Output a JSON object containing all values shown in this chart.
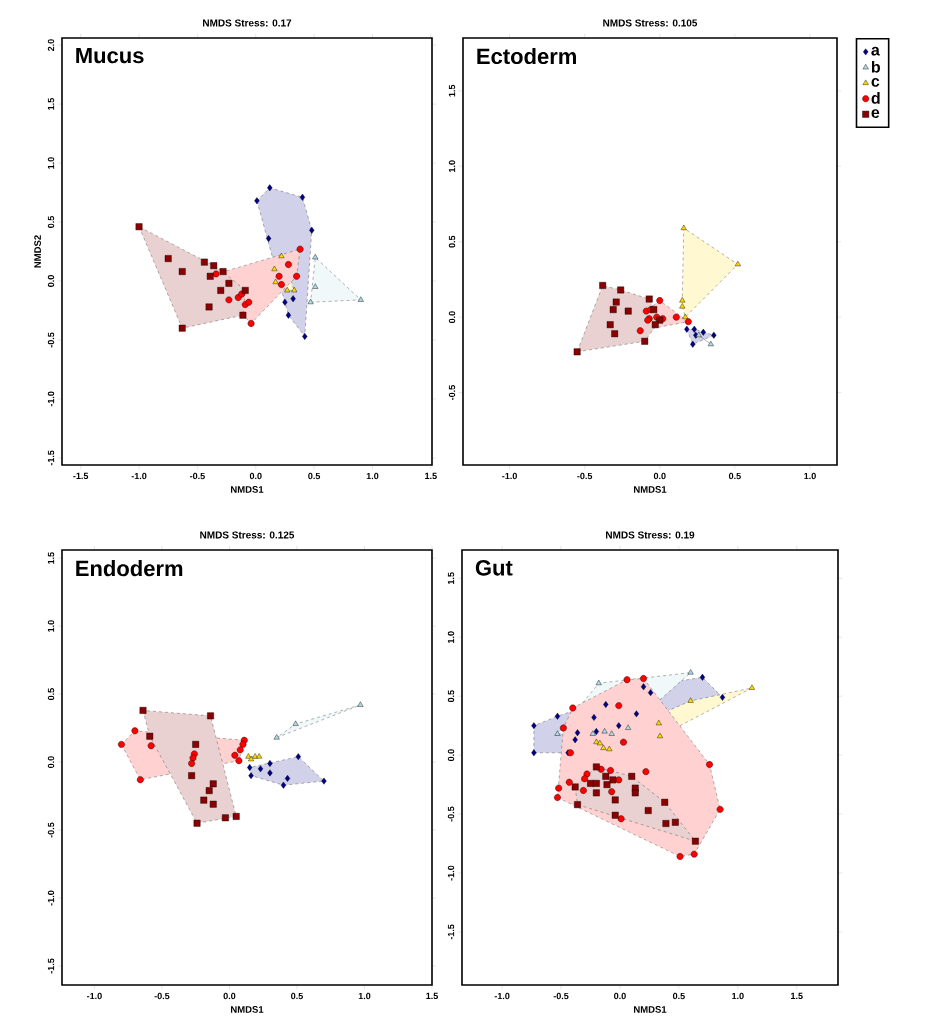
{
  "chart_data": [
    {
      "type": "scatter",
      "title": "NMDS Stress: 0.17",
      "annotations": [
        "Mucus"
      ],
      "xlabel": "NMDS1",
      "ylabel": "NMDS2",
      "xlim": [
        -1.66,
        1.51
      ],
      "ylim": [
        -1.56,
        2.06
      ],
      "xticks": [
        -1.5,
        {
          "value": -1,
          "label": "-1.0"
        },
        -0.5,
        {
          "value": 0,
          "label": "0.0"
        },
        0.5,
        {
          "value": 1,
          "label": "1.0"
        },
        1.5
      ],
      "yticks": [
        -1.5,
        {
          "value": -1,
          "label": "-1.0"
        },
        -0.5,
        {
          "value": 0,
          "label": "0.0"
        },
        0.5,
        {
          "value": 1,
          "label": "1.0"
        },
        1.5,
        {
          "value": 2,
          "label": "2.0"
        }
      ],
      "grid": false,
      "series": [
        {
          "color": "#00008b",
          "marker": "diamond",
          "x": [
            0.12,
            0.01,
            0.4,
            0.48,
            0.11,
            0.32,
            0.25,
            0.28,
            0.42
          ],
          "values": [
            0.79,
            0.68,
            0.71,
            0.43,
            0.36,
            -0.15,
            -0.18,
            -0.29,
            -0.47
          ]
        },
        {
          "color": "#add8e6",
          "marker": "triangle",
          "x": [
            0.51,
            0.51,
            0.47,
            0.9
          ],
          "values": [
            0.2,
            -0.05,
            -0.18,
            -0.16
          ]
        },
        {
          "color": "#ffd700",
          "marker": "triangle",
          "x": [
            0.22,
            0.16,
            0.17,
            0.27,
            0.33
          ],
          "values": [
            0.21,
            0.1,
            -0.01,
            -0.08,
            -0.08
          ]
        },
        {
          "color": "#ff0000",
          "marker": "circle",
          "x": [
            -0.34,
            -0.23,
            -0.15,
            -0.12,
            -0.09,
            -0.06,
            -0.04,
            0.38,
            0.28,
            0.2,
            0.22,
            0.35
          ],
          "values": [
            0.06,
            -0.16,
            -0.14,
            -0.11,
            -0.2,
            -0.18,
            -0.36,
            0.27,
            0.14,
            0.04,
            -0.03,
            0.04
          ]
        },
        {
          "color": "#8b0000",
          "marker": "square",
          "x": [
            -1.0,
            -0.75,
            -0.63,
            -0.63,
            -0.44,
            -0.36,
            -0.28,
            -0.39,
            -0.23,
            -0.3,
            -0.09,
            -0.4,
            -0.11
          ],
          "values": [
            0.46,
            0.19,
            0.08,
            -0.4,
            0.16,
            0.13,
            0.08,
            0.04,
            -0.02,
            -0.08,
            -0.08,
            -0.22,
            -0.29
          ]
        }
      ]
    },
    {
      "type": "scatter",
      "title": "NMDS Stress: 0.105",
      "annotations": [
        "Ectoderm"
      ],
      "xlabel": "NMDS1",
      "xlim": [
        -1.31,
        1.18
      ],
      "ylim": [
        -0.98,
        1.85
      ],
      "xticks": [
        {
          "value": -1,
          "label": "-1.0"
        },
        -0.5,
        {
          "value": 0,
          "label": "0.0"
        },
        0.5,
        {
          "value": 1,
          "label": "1.0"
        }
      ],
      "yticks": [
        -0.5,
        {
          "value": 0,
          "label": "0.0"
        },
        0.5,
        {
          "value": 1,
          "label": "1.0"
        },
        1.5
      ],
      "grid": false,
      "legend": "right",
      "series": [
        {
          "name": "a",
          "color": "#00008b",
          "marker": "diamond",
          "x": [
            0.18,
            0.23,
            0.29,
            0.36,
            0.22,
            0.24
          ],
          "values": [
            -0.08,
            -0.08,
            -0.1,
            -0.12,
            -0.18,
            -0.12
          ]
        },
        {
          "name": "b",
          "color": "#add8e6",
          "marker": "triangle",
          "x": [
            0.34,
            0.26
          ],
          "values": [
            -0.18,
            -0.12
          ]
        },
        {
          "name": "c",
          "color": "#ffd700",
          "marker": "triangle",
          "x": [
            0.16,
            0.52,
            0.15,
            0.15,
            0.17
          ],
          "values": [
            0.59,
            0.35,
            0.11,
            0.07,
            0.0
          ]
        },
        {
          "name": "d",
          "color": "#ff0000",
          "marker": "circle",
          "x": [
            0.0,
            -0.09,
            -0.07,
            -0.08,
            -0.02,
            0.02,
            -0.13,
            0.11,
            0.19,
            -0.06
          ],
          "values": [
            0.11,
            0.04,
            -0.01,
            -0.02,
            0.0,
            -0.01,
            -0.09,
            0.0,
            -0.03,
            0.05
          ]
        },
        {
          "name": "e",
          "color": "#8b0000",
          "marker": "square",
          "x": [
            -0.38,
            -0.26,
            -0.29,
            -0.31,
            -0.21,
            -0.33,
            -0.3,
            -0.1,
            -0.55,
            -0.07,
            -0.04,
            0.0,
            -0.03
          ],
          "values": [
            0.21,
            0.18,
            0.1,
            0.05,
            0.04,
            -0.05,
            -0.11,
            -0.16,
            -0.23,
            0.12,
            0.05,
            -0.02,
            -0.05
          ]
        }
      ]
    },
    {
      "type": "scatter",
      "title": "NMDS Stress: 0.125",
      "annotations": [
        "Endoderm"
      ],
      "xlabel": "NMDS1",
      "xlim": [
        -1.24,
        1.5
      ],
      "ylim": [
        -1.64,
        1.56
      ],
      "xticks": [
        {
          "value": -1,
          "label": "-1.0"
        },
        -0.5,
        {
          "value": 0,
          "label": "0.0"
        },
        0.5,
        {
          "value": 1,
          "label": "1.0"
        },
        1.5
      ],
      "yticks": [
        -1.5,
        {
          "value": -1,
          "label": "-1.0"
        },
        -0.5,
        {
          "value": 0,
          "label": "0.0"
        },
        0.5,
        {
          "value": 1,
          "label": "1.0"
        },
        1.5
      ],
      "grid": false,
      "series": [
        {
          "color": "#00008b",
          "marker": "diamond",
          "x": [
            0.15,
            0.23,
            0.16,
            0.3,
            0.3,
            0.51,
            0.43,
            0.4,
            0.7
          ],
          "values": [
            -0.04,
            -0.05,
            -0.1,
            -0.01,
            -0.08,
            0.04,
            -0.12,
            -0.17,
            -0.14
          ]
        },
        {
          "color": "#add8e6",
          "marker": "triangle",
          "x": [
            0.35,
            0.49,
            0.97
          ],
          "values": [
            0.18,
            0.28,
            0.42
          ]
        },
        {
          "color": "#ffd700",
          "marker": "triangle",
          "x": [
            0.14,
            0.19,
            0.22,
            0.16
          ],
          "values": [
            0.04,
            0.04,
            0.04,
            0.02
          ]
        },
        {
          "color": "#ff0000",
          "marker": "circle",
          "x": [
            -0.7,
            -0.8,
            -0.58,
            -0.66,
            -0.26,
            -0.27,
            -0.28,
            0.11,
            0.1,
            0.08,
            0.04,
            0.07
          ],
          "values": [
            0.23,
            0.13,
            0.12,
            -0.13,
            0.06,
            0.03,
            -0.01,
            0.16,
            0.13,
            0.09,
            0.05,
            0.01
          ]
        },
        {
          "color": "#8b0000",
          "marker": "square",
          "x": [
            -0.64,
            -0.14,
            -0.59,
            -0.25,
            -0.28,
            -0.12,
            -0.15,
            -0.19,
            -0.12,
            -0.24,
            -0.03,
            0.05
          ],
          "values": [
            0.38,
            0.34,
            0.19,
            0.13,
            -0.1,
            -0.16,
            -0.21,
            -0.28,
            -0.31,
            -0.45,
            -0.41,
            -0.4
          ]
        }
      ]
    },
    {
      "type": "scatter",
      "title": "NMDS Stress: 0.19",
      "annotations": [
        "Gut"
      ],
      "xlabel": "NMDS1",
      "xlim": [
        -1.34,
        1.85
      ],
      "ylim": [
        -1.95,
        1.74
      ],
      "xticks": [
        {
          "value": -1,
          "label": "-1.0"
        },
        -0.5,
        {
          "value": 0,
          "label": "0.0"
        },
        0.5,
        {
          "value": 1,
          "label": "1.0"
        },
        1.5
      ],
      "yticks": [
        -1.5,
        {
          "value": -1,
          "label": "-1.0"
        },
        -0.5,
        {
          "value": 0,
          "label": "0.0"
        },
        0.5,
        {
          "value": 1,
          "label": "1.0"
        },
        1.5
      ],
      "grid": false,
      "series": [
        {
          "color": "#00008b",
          "marker": "diamond",
          "x": [
            -0.73,
            -0.73,
            -0.53,
            -0.44,
            -0.36,
            -0.38,
            -0.22,
            -0.12,
            -0.01,
            0.14,
            0.2,
            0.26,
            0.7,
            0.87,
            -0.2
          ],
          "values": [
            0.25,
            0.02,
            0.33,
            0.02,
            0.19,
            0.13,
            0.32,
            0.43,
            0.25,
            0.35,
            0.58,
            0.53,
            0.66,
            0.49,
            0.2
          ]
        },
        {
          "color": "#add8e6",
          "marker": "triangle",
          "x": [
            -0.18,
            -0.53,
            -0.23,
            -0.13,
            -0.07,
            0.07,
            0.6
          ],
          "values": [
            0.61,
            0.18,
            0.18,
            0.2,
            0.18,
            0.23,
            0.7
          ]
        },
        {
          "color": "#ffd700",
          "marker": "triangle",
          "x": [
            -0.2,
            -0.17,
            -0.14,
            -0.09,
            0.33,
            0.34,
            0.6,
            1.12
          ],
          "values": [
            0.11,
            0.1,
            0.06,
            0.05,
            0.27,
            0.16,
            0.46,
            0.57
          ]
        },
        {
          "color": "#ff0000",
          "marker": "circle",
          "x": [
            0.06,
            0.2,
            -0.4,
            -0.48,
            -0.01,
            0.03,
            -0.42,
            -0.52,
            -0.53,
            -0.43,
            -0.31,
            -0.28,
            -0.3,
            -0.16,
            -0.08,
            -0.01,
            -0.07,
            0.22,
            0.76,
            0.85,
            0.01,
            0.51,
            0.63
          ],
          "values": [
            0.64,
            0.65,
            0.4,
            0.23,
            0.42,
            0.11,
            0.02,
            -0.28,
            -0.36,
            -0.23,
            -0.3,
            -0.16,
            -0.2,
            -0.12,
            -0.13,
            -0.21,
            -0.31,
            -0.14,
            -0.08,
            -0.46,
            -0.54,
            -0.86,
            -0.84
          ]
        },
        {
          "color": "#8b0000",
          "marker": "square",
          "x": [
            -0.2,
            -0.38,
            -0.36,
            -0.25,
            -0.2,
            -0.2,
            -0.12,
            -0.11,
            -0.06,
            -0.04,
            -0.04,
            0.1,
            0.13,
            0.13,
            0.24,
            0.38,
            0.39,
            0.47,
            0.64
          ],
          "values": [
            -0.1,
            -0.27,
            -0.42,
            -0.24,
            -0.24,
            -0.32,
            -0.18,
            -0.25,
            -0.21,
            -0.38,
            -0.51,
            -0.18,
            -0.28,
            -0.32,
            -0.47,
            -0.4,
            -0.58,
            -0.57,
            -0.73
          ]
        }
      ]
    }
  ]
}
